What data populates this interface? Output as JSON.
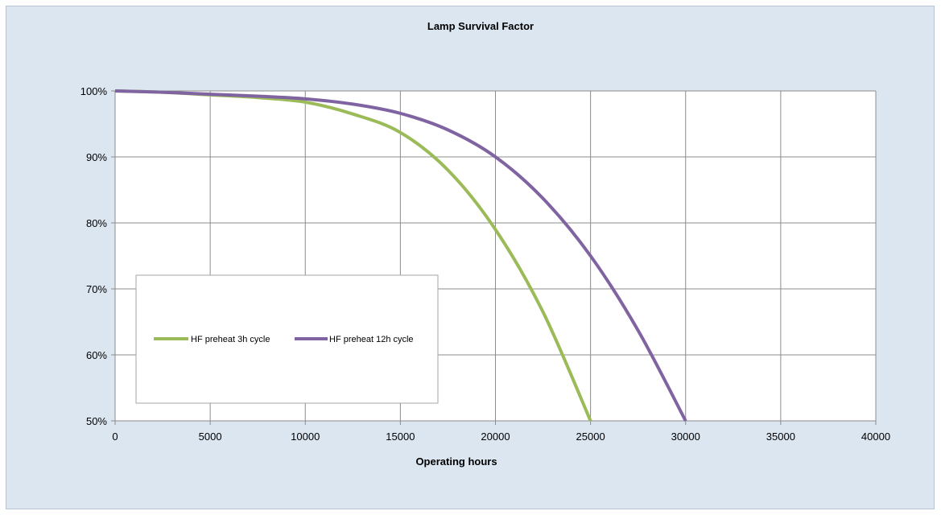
{
  "chart_data": {
    "type": "line",
    "title": "Lamp Survival Factor",
    "xlabel": "Operating hours",
    "ylabel": "",
    "xlim": [
      0,
      40000
    ],
    "ylim": [
      0.5,
      1.0
    ],
    "x_ticks": [
      "0",
      "5000",
      "10000",
      "15000",
      "20000",
      "25000",
      "30000",
      "35000",
      "40000"
    ],
    "y_ticks": [
      "50%",
      "60%",
      "70%",
      "80%",
      "90%",
      "100%"
    ],
    "grid": true,
    "legend": "inside-lower-left",
    "series": [
      {
        "name": "HF preheat 3h cycle",
        "color": "#9bbb59",
        "x": [
          0,
          2500,
          5000,
          7500,
          10000,
          12500,
          15000,
          17500,
          20000,
          22500,
          25000
        ],
        "y": [
          1.0,
          0.998,
          0.994,
          0.99,
          0.983,
          0.965,
          0.937,
          0.88,
          0.79,
          0.665,
          0.5
        ]
      },
      {
        "name": "HF preheat 12h cycle",
        "color": "#8064a2",
        "x": [
          0,
          2500,
          5000,
          7500,
          10000,
          12500,
          15000,
          17500,
          20000,
          22500,
          25000,
          27500,
          30000
        ],
        "y": [
          1.0,
          0.998,
          0.995,
          0.992,
          0.988,
          0.98,
          0.966,
          0.941,
          0.9,
          0.837,
          0.75,
          0.637,
          0.5
        ]
      }
    ]
  }
}
